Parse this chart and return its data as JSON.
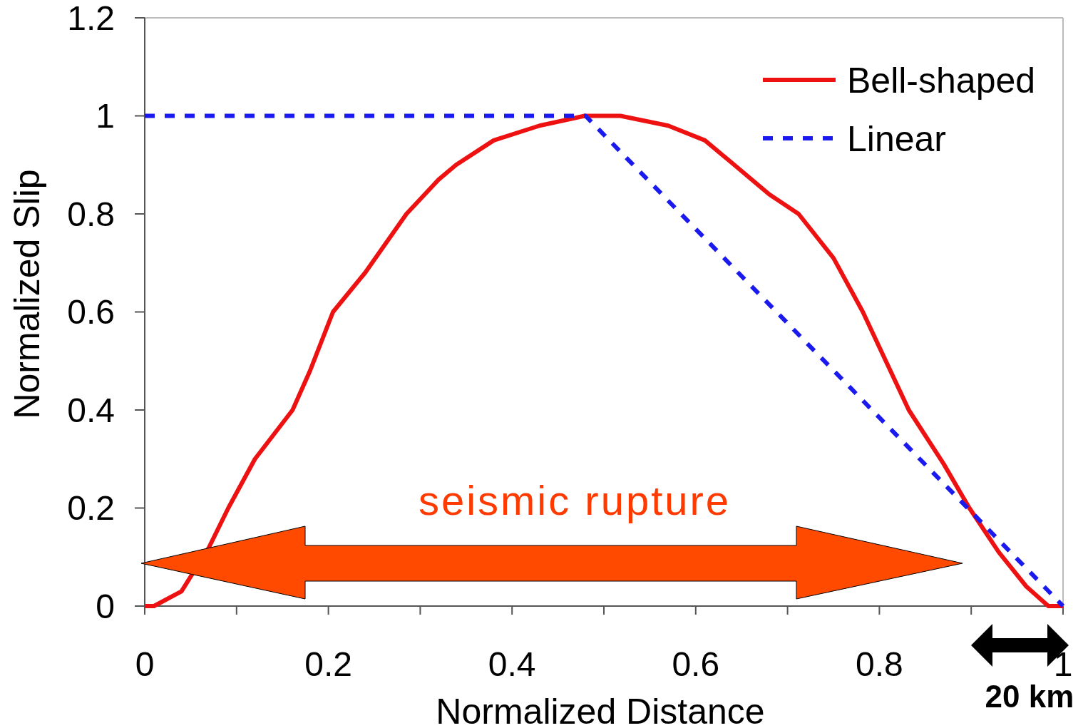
{
  "chart_data": {
    "type": "line",
    "xlabel": "Normalized Distance",
    "ylabel": "Normalized Slip",
    "xlim": [
      0,
      1
    ],
    "ylim": [
      0,
      1.2
    ],
    "xticks": [
      0,
      {
        "value": 0.1,
        "label": null
      },
      0.2,
      {
        "value": 0.3,
        "label": null
      },
      0.4,
      {
        "value": 0.5,
        "label": null
      },
      0.6,
      {
        "value": 0.7,
        "label": null
      },
      0.8,
      {
        "value": 0.9,
        "label": null
      },
      1
    ],
    "yticks": [
      0,
      0.2,
      0.4,
      0.6,
      0.8,
      1,
      1.2
    ],
    "grid": false,
    "legend": "top right",
    "series": [
      {
        "name": "Bell-shaped",
        "color": "#ee1111",
        "line_style": "solid",
        "x": [
          0,
          0.01,
          0.04,
          0.07,
          0.091,
          0.12,
          0.161,
          0.18,
          0.205,
          0.24,
          0.285,
          0.32,
          0.339,
          0.38,
          0.43,
          0.479,
          0.518,
          0.57,
          0.61,
          0.642,
          0.68,
          0.712,
          0.75,
          0.782,
          0.832,
          0.87,
          0.898,
          0.93,
          0.96,
          0.984,
          1
        ],
        "values": [
          0,
          0,
          0.03,
          0.12,
          0.2,
          0.3,
          0.4,
          0.48,
          0.6,
          0.68,
          0.8,
          0.87,
          0.9,
          0.95,
          0.98,
          1,
          1,
          0.98,
          0.95,
          0.9,
          0.84,
          0.8,
          0.71,
          0.6,
          0.4,
          0.29,
          0.2,
          0.11,
          0.04,
          0,
          0
        ]
      },
      {
        "name": "Linear",
        "color": "#1a1aee",
        "line_style": "dashed",
        "x": [
          0,
          0.48,
          1
        ],
        "values": [
          1,
          1,
          0
        ]
      }
    ],
    "annotations": [
      "seismic rupture",
      "20 km"
    ]
  }
}
